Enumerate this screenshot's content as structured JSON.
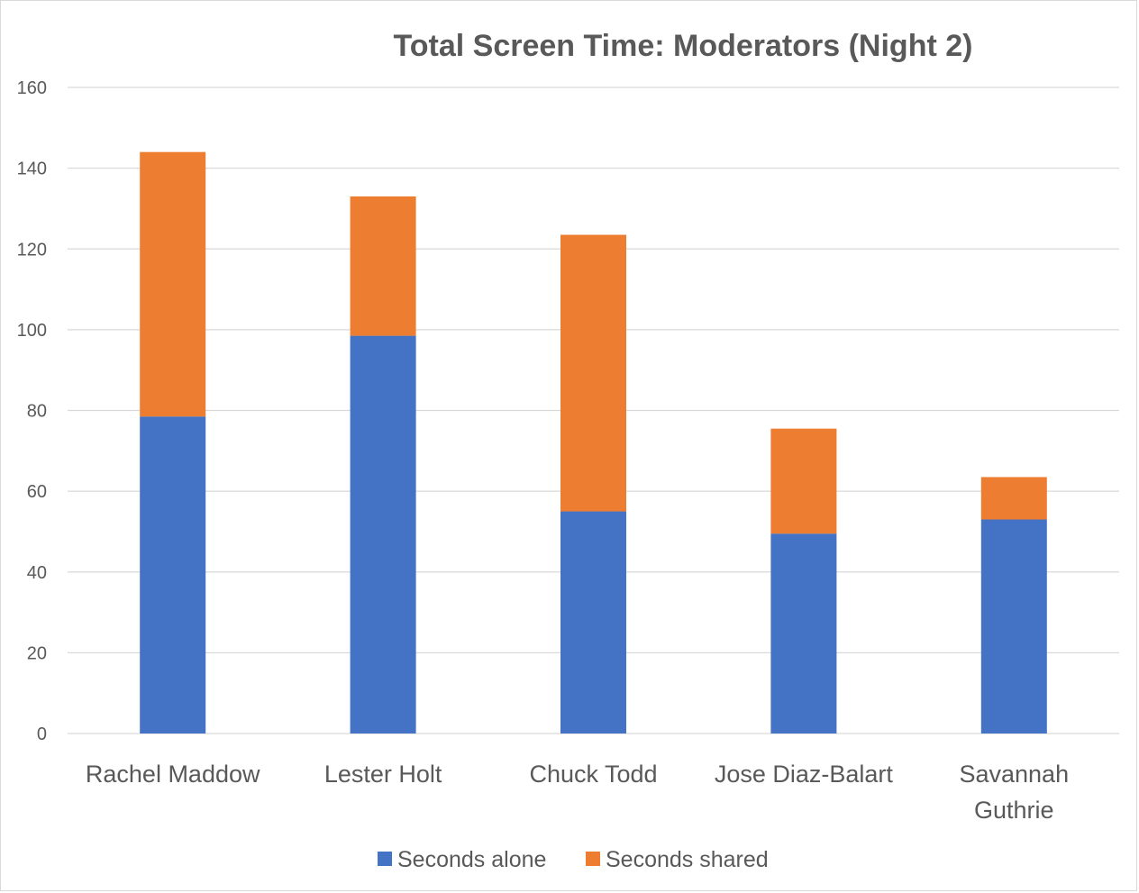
{
  "chart_data": {
    "type": "bar",
    "stacked": true,
    "title": "Total Screen Time: Moderators (Night 2)",
    "xlabel": "",
    "ylabel": "",
    "ylim": [
      0,
      160
    ],
    "yticks": [
      "0",
      "20",
      "40",
      "60",
      "80",
      "100",
      "120",
      "140",
      "160"
    ],
    "grid": true,
    "legend_position": "bottom",
    "categories": [
      [
        "Rachel Maddow"
      ],
      [
        "Lester Holt"
      ],
      [
        "Chuck Todd"
      ],
      [
        "Jose Diaz-Balart"
      ],
      [
        "Savannah",
        "Guthrie"
      ]
    ],
    "series": [
      {
        "name": "Seconds alone",
        "color": "#4472C4",
        "values": [
          78.5,
          98.5,
          55,
          49.5,
          53
        ]
      },
      {
        "name": "Seconds shared",
        "color": "#ED7D31",
        "values": [
          65.5,
          34.5,
          68.5,
          26,
          10.5
        ]
      }
    ]
  }
}
